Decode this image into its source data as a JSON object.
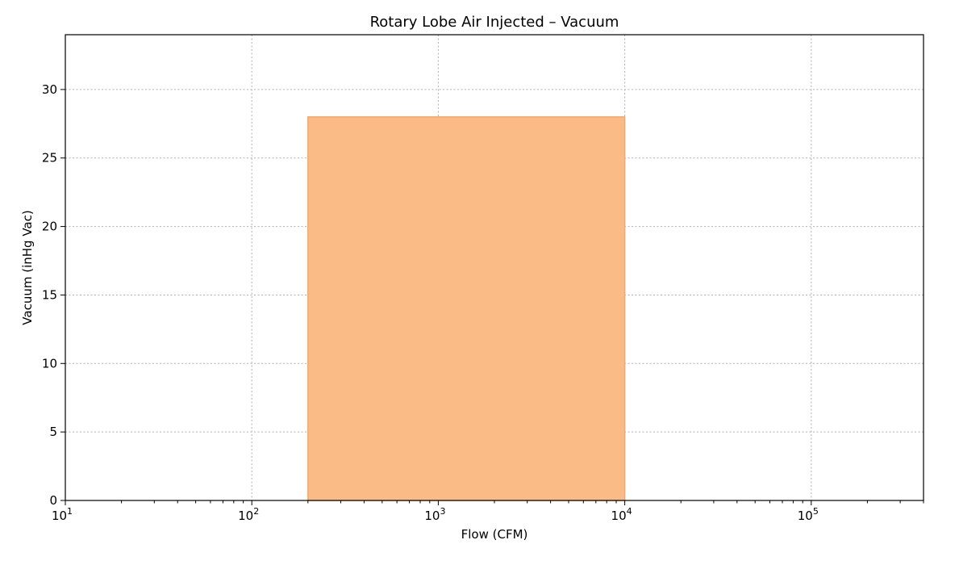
{
  "chart_data": {
    "type": "area",
    "title": "Rotary Lobe Air Injected – Vacuum",
    "xlabel": "Flow (CFM)",
    "ylabel": "Vacuum (inHg Vac)",
    "xscale": "log",
    "xlim": [
      10,
      400000
    ],
    "ylim": [
      0,
      34
    ],
    "x_major_ticks": [
      {
        "value": 10,
        "base": "10",
        "exp": "1"
      },
      {
        "value": 100,
        "base": "10",
        "exp": "2"
      },
      {
        "value": 1000,
        "base": "10",
        "exp": "3"
      },
      {
        "value": 10000,
        "base": "10",
        "exp": "4"
      },
      {
        "value": 100000,
        "base": "10",
        "exp": "5"
      }
    ],
    "y_ticks": [
      {
        "value": 0,
        "label": "0"
      },
      {
        "value": 5,
        "label": "5"
      },
      {
        "value": 10,
        "label": "10"
      },
      {
        "value": 15,
        "label": "15"
      },
      {
        "value": 20,
        "label": "20"
      },
      {
        "value": 25,
        "label": "25"
      },
      {
        "value": 30,
        "label": "30"
      }
    ],
    "grid": true,
    "regions": [
      {
        "x_min": 200,
        "x_max": 10000,
        "y_min": 0,
        "y_max": 28,
        "color": "#fbbb87",
        "edge_color": "#f5a86a"
      }
    ]
  }
}
